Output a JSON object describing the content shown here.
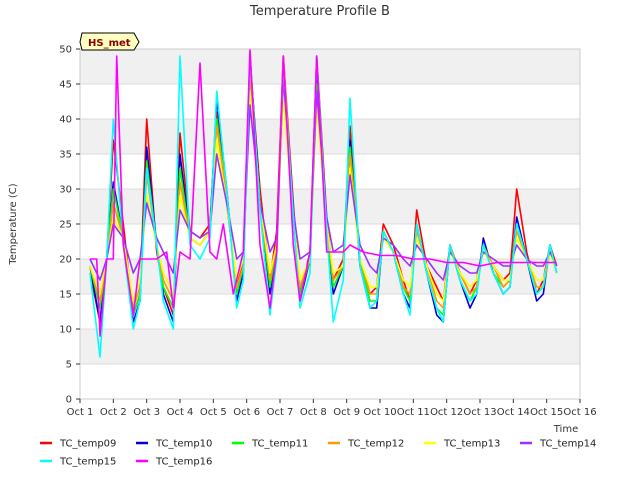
{
  "chart_data": {
    "type": "line",
    "title": "Temperature Profile B",
    "xlabel": "Time",
    "ylabel": "Temperature (C)",
    "badge": "HS_met",
    "ylim": [
      0,
      50
    ],
    "yticks": [
      0,
      5,
      10,
      15,
      20,
      25,
      30,
      35,
      40,
      45,
      50
    ],
    "xlim": [
      1,
      16
    ],
    "xticks": [
      {
        "v": 1,
        "label": "Oct 1"
      },
      {
        "v": 2,
        "label": "Oct 2"
      },
      {
        "v": 3,
        "label": "Oct 3"
      },
      {
        "v": 4,
        "label": "Oct 4"
      },
      {
        "v": 5,
        "label": "Oct 5"
      },
      {
        "v": 6,
        "label": "Oct 6"
      },
      {
        "v": 7,
        "label": "Oct 7"
      },
      {
        "v": 8,
        "label": "Oct 8"
      },
      {
        "v": 9,
        "label": "Oct 9"
      },
      {
        "v": 10,
        "label": "Oct 10"
      },
      {
        "v": 11,
        "label": "Oct 11"
      },
      {
        "v": 12,
        "label": "Oct 12"
      },
      {
        "v": 13,
        "label": "Oct 13"
      },
      {
        "v": 14,
        "label": "Oct 14"
      },
      {
        "v": 15,
        "label": "Oct 15"
      },
      {
        "v": 16,
        "label": "Oct 16"
      }
    ],
    "grid": true,
    "legend_position": "bottom",
    "series": [
      {
        "name": "TC_temp09",
        "color": "#ff0000",
        "x": [
          1.3,
          1.6,
          1.8,
          2.0,
          2.3,
          2.6,
          2.8,
          3.0,
          3.3,
          3.5,
          3.8,
          4.0,
          4.3,
          4.6,
          4.9,
          5.1,
          5.4,
          5.7,
          5.9,
          6.1,
          6.4,
          6.7,
          6.9,
          7.1,
          7.4,
          7.6,
          7.9,
          8.1,
          8.4,
          8.6,
          8.9,
          9.1,
          9.4,
          9.7,
          9.9,
          10.1,
          10.4,
          10.7,
          10.9,
          11.1,
          11.4,
          11.7,
          11.9,
          12.1,
          12.4,
          12.7,
          12.9,
          13.1,
          13.4,
          13.7,
          13.9,
          14.1,
          14.4,
          14.7,
          14.9,
          15.1,
          15.3
        ],
        "y": [
          18,
          11,
          20,
          37,
          25,
          12,
          15,
          40,
          21,
          16,
          12,
          38,
          24,
          23,
          25,
          41,
          28,
          16,
          20,
          48,
          30,
          17,
          24,
          49,
          28,
          15,
          21,
          49,
          26,
          17,
          20,
          39,
          20,
          15,
          16,
          25,
          22,
          17,
          14,
          27,
          19,
          16,
          14,
          22,
          18,
          15,
          17,
          22,
          19,
          17,
          18,
          30,
          21,
          15,
          17,
          22,
          19
        ]
      },
      {
        "name": "TC_temp10",
        "color": "#0000dd",
        "x": [
          1.3,
          1.6,
          1.8,
          2.0,
          2.3,
          2.6,
          2.8,
          3.0,
          3.3,
          3.5,
          3.8,
          4.0,
          4.3,
          4.6,
          4.9,
          5.1,
          5.4,
          5.7,
          5.9,
          6.1,
          6.4,
          6.7,
          6.9,
          7.1,
          7.4,
          7.6,
          7.9,
          8.1,
          8.4,
          8.6,
          8.9,
          9.1,
          9.4,
          9.7,
          9.9,
          10.1,
          10.4,
          10.7,
          10.9,
          11.1,
          11.4,
          11.7,
          11.9,
          12.1,
          12.4,
          12.7,
          12.9,
          13.1,
          13.4,
          13.7,
          13.9,
          14.1,
          14.4,
          14.7,
          14.9,
          15.1,
          15.3
        ],
        "y": [
          19,
          11,
          20,
          31,
          23,
          11,
          14,
          36,
          22,
          15,
          11,
          35,
          23,
          22,
          24,
          43,
          30,
          14,
          18,
          49,
          28,
          15,
          21,
          48,
          26,
          14,
          20,
          47,
          25,
          15,
          19,
          37,
          19,
          13,
          13,
          24,
          21,
          15,
          13,
          25,
          18,
          12,
          11,
          22,
          17,
          13,
          15,
          23,
          18,
          15,
          16,
          26,
          20,
          14,
          15,
          22,
          18
        ]
      },
      {
        "name": "TC_temp11",
        "color": "#00ff00",
        "x": [
          1.3,
          1.6,
          1.8,
          2.0,
          2.3,
          2.6,
          2.8,
          3.0,
          3.3,
          3.5,
          3.8,
          4.0,
          4.3,
          4.6,
          4.9,
          5.1,
          5.4,
          5.7,
          5.9,
          6.1,
          6.4,
          6.7,
          6.9,
          7.1,
          7.4,
          7.6,
          7.9,
          8.1,
          8.4,
          8.6,
          8.9,
          9.1,
          9.4,
          9.7,
          9.9,
          10.1,
          10.4,
          10.7,
          10.9,
          11.1,
          11.4,
          11.7,
          11.9,
          12.1,
          12.4,
          12.7,
          12.9,
          13.1,
          13.4,
          13.7,
          13.9,
          14.1,
          14.4,
          14.7,
          14.9,
          15.1,
          15.3
        ],
        "y": [
          19,
          13,
          20,
          30,
          23,
          12,
          15,
          34,
          22,
          16,
          13,
          33,
          23,
          22,
          24,
          40,
          29,
          15,
          19,
          47,
          28,
          16,
          22,
          46,
          26,
          15,
          20,
          45,
          25,
          16,
          19,
          36,
          20,
          14,
          14,
          24,
          21,
          16,
          14,
          25,
          18,
          13,
          12,
          22,
          17,
          14,
          16,
          22,
          18,
          16,
          17,
          25,
          20,
          15,
          16,
          22,
          18
        ]
      },
      {
        "name": "TC_temp12",
        "color": "#ff9900",
        "x": [
          1.3,
          1.6,
          1.8,
          2.0,
          2.3,
          2.6,
          2.8,
          3.0,
          3.3,
          3.5,
          3.8,
          4.0,
          4.3,
          4.6,
          4.9,
          5.1,
          5.4,
          5.7,
          5.9,
          6.1,
          6.4,
          6.7,
          6.9,
          7.1,
          7.4,
          7.6,
          7.9,
          8.1,
          8.4,
          8.6,
          8.9,
          9.1,
          9.4,
          9.7,
          9.9,
          10.1,
          10.4,
          10.7,
          10.9,
          11.1,
          11.4,
          11.7,
          11.9,
          12.1,
          12.4,
          12.7,
          12.9,
          13.1,
          13.4,
          13.7,
          13.9,
          14.1,
          14.4,
          14.7,
          14.9,
          15.1,
          15.3
        ],
        "y": [
          19,
          14,
          20,
          28,
          23,
          13,
          16,
          32,
          22,
          17,
          14,
          31,
          23,
          22,
          24,
          39,
          29,
          16,
          19,
          46,
          28,
          17,
          22,
          49,
          26,
          16,
          20,
          44,
          25,
          17,
          19,
          35,
          20,
          15,
          15,
          24,
          21,
          16,
          15,
          24,
          19,
          14,
          13,
          22,
          18,
          15,
          16,
          22,
          19,
          16,
          17,
          24,
          20,
          16,
          16,
          21,
          18
        ]
      },
      {
        "name": "TC_temp13",
        "color": "#ffff00",
        "x": [
          1.3,
          1.6,
          1.8,
          2.0,
          2.3,
          2.6,
          2.8,
          3.0,
          3.3,
          3.5,
          3.8,
          4.0,
          4.3,
          4.6,
          4.9,
          5.1,
          5.4,
          5.7,
          5.9,
          6.1,
          6.4,
          6.7,
          6.9,
          7.1,
          7.4,
          7.6,
          7.9,
          8.1,
          8.4,
          8.6,
          8.9,
          9.1,
          9.4,
          9.7,
          9.9,
          10.1,
          10.4,
          10.7,
          10.9,
          11.1,
          11.4,
          11.7,
          11.9,
          12.1,
          12.4,
          12.7,
          12.9,
          13.1,
          13.4,
          13.7,
          13.9,
          14.1,
          14.4,
          14.7,
          14.9,
          15.1,
          15.3
        ],
        "y": [
          19,
          15,
          20,
          26,
          23,
          14,
          17,
          29,
          22,
          18,
          15,
          29,
          23,
          22,
          24,
          37,
          28,
          17,
          20,
          44,
          28,
          18,
          22,
          43,
          26,
          17,
          20,
          42,
          25,
          18,
          19,
          33,
          20,
          16,
          16,
          23,
          21,
          17,
          16,
          23,
          19,
          15,
          14,
          21,
          18,
          16,
          17,
          21,
          19,
          17,
          17,
          23,
          20,
          17,
          17,
          21,
          18
        ]
      },
      {
        "name": "TC_temp14",
        "color": "#9933ff",
        "x": [
          1.3,
          1.6,
          1.8,
          2.0,
          2.3,
          2.6,
          2.8,
          3.0,
          3.3,
          3.5,
          3.8,
          4.0,
          4.3,
          4.6,
          4.9,
          5.1,
          5.4,
          5.7,
          5.9,
          6.1,
          6.4,
          6.7,
          6.9,
          7.1,
          7.4,
          7.6,
          7.9,
          8.1,
          8.4,
          8.6,
          8.9,
          9.1,
          9.4,
          9.7,
          9.9,
          10.1,
          10.4,
          10.7,
          10.9,
          11.1,
          11.4,
          11.7,
          11.9,
          12.1,
          12.4,
          12.7,
          12.9,
          13.1,
          13.4,
          13.7,
          13.9,
          14.1,
          14.4,
          14.7,
          14.9,
          15.1,
          15.3
        ],
        "y": [
          20,
          17,
          20,
          25,
          23,
          18,
          20,
          28,
          23,
          21,
          18,
          27,
          24,
          23,
          24,
          35,
          28,
          20,
          21,
          42,
          28,
          21,
          23,
          46,
          27,
          20,
          21,
          44,
          26,
          21,
          22,
          32,
          22,
          19,
          18,
          23,
          22,
          20,
          19,
          22,
          20,
          18,
          17,
          21,
          19,
          18,
          18,
          21,
          20,
          19,
          19,
          22,
          20,
          19,
          19,
          21,
          19
        ]
      },
      {
        "name": "TC_temp15",
        "color": "#00ffff",
        "x": [
          1.3,
          1.6,
          1.8,
          2.0,
          2.3,
          2.6,
          2.8,
          3.0,
          3.3,
          3.5,
          3.8,
          4.0,
          4.3,
          4.6,
          4.9,
          5.1,
          5.4,
          5.7,
          5.9,
          6.1,
          6.4,
          6.7,
          6.9,
          7.1,
          7.4,
          7.6,
          7.9,
          8.1,
          8.4,
          8.6,
          8.9,
          9.1,
          9.4,
          9.7,
          9.9,
          10.1,
          10.4,
          10.7,
          10.9,
          11.1,
          11.4,
          11.7,
          11.9,
          12.1,
          12.4,
          12.7,
          12.9,
          13.1,
          13.4,
          13.7,
          13.9,
          14.1,
          14.4,
          14.7,
          14.9,
          15.1,
          15.3
        ],
        "y": [
          18,
          6,
          20,
          40,
          22,
          10,
          14,
          33,
          22,
          14,
          10,
          49,
          22,
          20,
          23,
          44,
          30,
          13,
          17,
          49,
          27,
          12,
          20,
          48,
          26,
          13,
          18,
          49,
          24,
          11,
          17,
          43,
          19,
          13,
          14,
          24,
          21,
          15,
          12,
          25,
          18,
          13,
          11,
          22,
          17,
          14,
          15,
          22,
          18,
          15,
          16,
          25,
          20,
          15,
          16,
          22,
          18
        ]
      },
      {
        "name": "TC_temp16",
        "color": "#ff00ff",
        "x": [
          1.3,
          1.5,
          1.6,
          1.8,
          2.0,
          2.1,
          2.3,
          2.6,
          2.8,
          3.0,
          3.3,
          3.6,
          3.8,
          4.0,
          4.3,
          4.6,
          4.9,
          5.1,
          5.3,
          5.6,
          5.9,
          6.1,
          6.4,
          6.7,
          6.9,
          7.1,
          7.4,
          7.6,
          7.9,
          8.1,
          8.4,
          8.6,
          8.9,
          9.1,
          9.5,
          10.0,
          10.5,
          11.0,
          11.5,
          12.0,
          12.5,
          13.0,
          13.5,
          14.0,
          14.5,
          15.0,
          15.3
        ],
        "y": [
          20,
          20,
          9,
          20,
          20,
          49,
          22,
          12,
          20,
          20,
          20,
          21,
          13,
          21,
          20,
          48,
          21,
          20,
          25,
          15,
          21,
          50,
          22,
          13,
          21,
          49,
          22,
          14,
          21,
          49,
          21,
          21,
          21,
          22,
          21,
          20.5,
          20.5,
          20,
          20,
          19.5,
          19.5,
          19,
          19.5,
          19.5,
          19.5,
          19.5,
          19.5
        ]
      }
    ]
  }
}
